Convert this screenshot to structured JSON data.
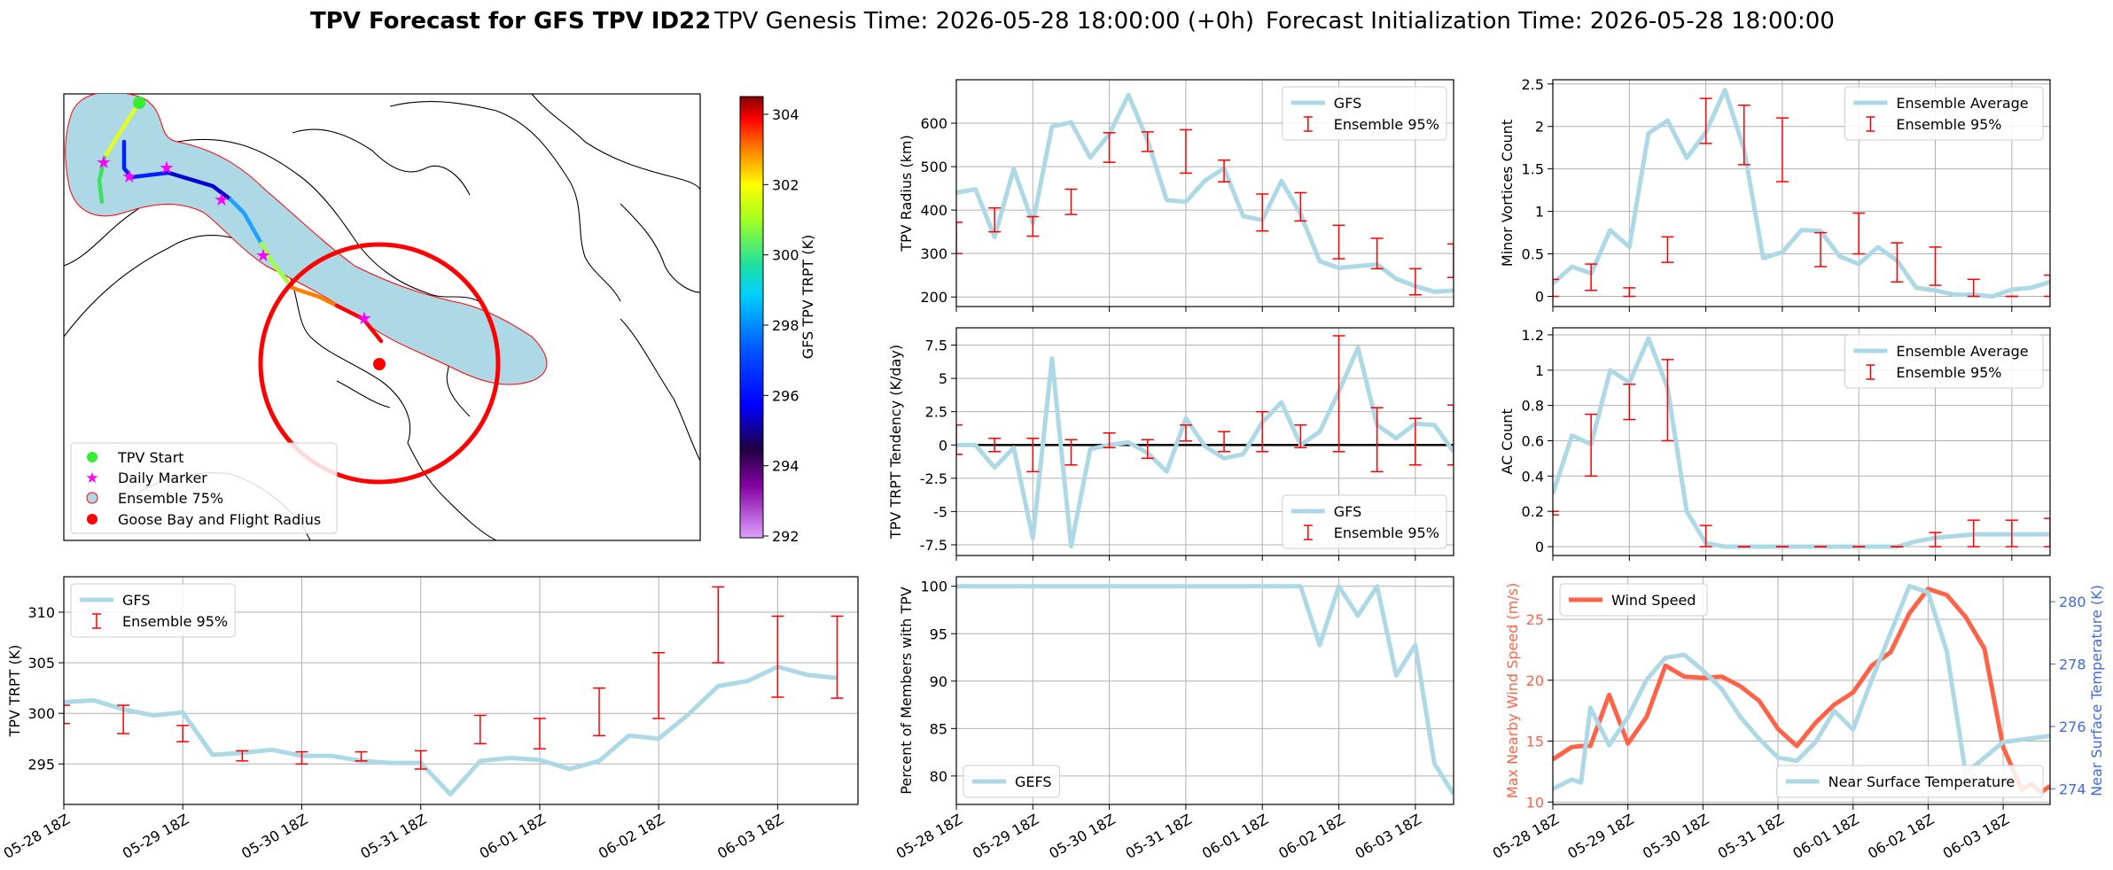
{
  "title": {
    "bold": "TPV Forecast for GFS TPV ID22",
    "genesis": "TPV Genesis Time: 2026-05-28 18:00:00 (+0h)",
    "init": "Forecast Initialization Time: 2026-05-28 18:00:00"
  },
  "colors": {
    "gfs": "#add8e6",
    "ens": "#ff0000",
    "wind": "#ff6347",
    "temp_axis": "#4169e1"
  },
  "map": {
    "colorbar_label": "GFS TPV TRPT (K)",
    "colorbar_ticks": [
      "304",
      "302",
      "300",
      "298",
      "296",
      "294",
      "292"
    ],
    "legend": [
      "TPV Start",
      "Daily Marker",
      "Ensemble 75%",
      "Goose Bay and Flight Radius"
    ]
  },
  "date_ticks": [
    "05-28 18Z",
    "05-29 18Z",
    "05-30 18Z",
    "05-31 18Z",
    "06-01 18Z",
    "06-02 18Z",
    "06-03 18Z"
  ],
  "chart_data": [
    {
      "id": "trpt",
      "type": "line",
      "ylabel": "TPV TRPT (K)",
      "ylim": [
        291,
        313.5
      ],
      "yticks": [
        295,
        300,
        305,
        310
      ],
      "legend": [
        "GFS",
        "Ensemble 95%"
      ],
      "legend_loc": "upper-left",
      "gfs": [
        301.1,
        301.3,
        300.4,
        299.8,
        300.1,
        295.9,
        296.1,
        296.4,
        295.8,
        295.8,
        295.3,
        295.1,
        295.1,
        292.0,
        295.3,
        295.6,
        295.4,
        294.5,
        295.3,
        297.8,
        297.5,
        299.9,
        302.7,
        303.2,
        304.6,
        303.8,
        303.5
      ],
      "ens_x": [
        0,
        2,
        4,
        6,
        8,
        10,
        12,
        14,
        16,
        18,
        20,
        22,
        24,
        26
      ],
      "ens_low": [
        299.0,
        298.0,
        297.2,
        295.3,
        295.0,
        295.3,
        294.5,
        297.0,
        296.5,
        297.8,
        299.5,
        305.0,
        301.6,
        301.5
      ],
      "ens_high": [
        300.8,
        300.8,
        298.8,
        296.3,
        296.2,
        296.2,
        296.3,
        299.8,
        299.5,
        302.5,
        306.0,
        312.5,
        309.6,
        309.6
      ]
    },
    {
      "id": "radius",
      "type": "line",
      "ylabel": "TPV Radius (km)",
      "ylim": [
        178,
        700
      ],
      "yticks": [
        200,
        300,
        400,
        500,
        600
      ],
      "legend": [
        "GFS",
        "Ensemble 95%"
      ],
      "legend_loc": "upper-right",
      "gfs": [
        440,
        448,
        338,
        495,
        370,
        592,
        602,
        521,
        575,
        665,
        560,
        423,
        419,
        468,
        496,
        386,
        377,
        467,
        391,
        282,
        267,
        271,
        275,
        242,
        225,
        212,
        215
      ],
      "ens_x": [
        0,
        2,
        4,
        6,
        8,
        10,
        12,
        14,
        16,
        18,
        20,
        22,
        24,
        26
      ],
      "ens_low": [
        300,
        350,
        340,
        390,
        510,
        535,
        485,
        465,
        352,
        375,
        288,
        265,
        205,
        245
      ],
      "ens_high": [
        372,
        405,
        385,
        448,
        578,
        580,
        585,
        515,
        437,
        440,
        365,
        335,
        265,
        322
      ]
    },
    {
      "id": "minor",
      "type": "line",
      "ylabel": "Minor Vortices Count",
      "ylim": [
        -0.12,
        2.55
      ],
      "yticks": [
        0.0,
        0.5,
        1.0,
        1.5,
        2.0,
        2.5
      ],
      "legend": [
        "Ensemble Average",
        "Ensemble 95%"
      ],
      "legend_loc": "upper-right",
      "gfs": [
        0.15,
        0.35,
        0.27,
        0.78,
        0.58,
        1.92,
        2.07,
        1.63,
        1.93,
        2.43,
        1.73,
        0.45,
        0.52,
        0.78,
        0.77,
        0.47,
        0.38,
        0.58,
        0.42,
        0.1,
        0.07,
        0.02,
        0.02,
        0.0,
        0.08,
        0.1,
        0.17
      ],
      "ens_x": [
        0,
        2,
        4,
        6,
        8,
        10,
        12,
        14,
        16,
        18,
        20,
        22,
        24,
        26
      ],
      "ens_low": [
        0.0,
        0.07,
        0.0,
        0.4,
        1.8,
        1.55,
        1.35,
        0.35,
        0.5,
        0.17,
        0.13,
        0.0,
        0.0,
        0.0
      ],
      "ens_high": [
        0.2,
        0.38,
        0.1,
        0.7,
        2.33,
        2.25,
        2.1,
        0.75,
        0.98,
        0.63,
        0.58,
        0.2,
        0.0,
        0.25
      ]
    },
    {
      "id": "tendency",
      "type": "line",
      "ylabel": "TPV TRPT Tendency (K/day)",
      "ylim": [
        -8.3,
        8.8
      ],
      "yticks": [
        -7.5,
        -5.0,
        -2.5,
        0.0,
        2.5,
        5.0,
        7.5
      ],
      "legend": [
        "GFS",
        "Ensemble 95%"
      ],
      "legend_loc": "lower-right",
      "gfs": [
        0.0,
        0.0,
        -1.7,
        -0.2,
        -7.0,
        6.5,
        -7.6,
        -0.3,
        0.0,
        0.2,
        -0.6,
        -2.0,
        2.0,
        -0.1,
        -1.0,
        -0.7,
        1.7,
        3.2,
        0.0,
        1.0,
        4.0,
        7.3,
        1.5,
        0.5,
        1.6,
        1.5,
        -0.5
      ],
      "ens_x": [
        0,
        2,
        4,
        6,
        8,
        10,
        12,
        14,
        16,
        18,
        20,
        22,
        24,
        26
      ],
      "ens_low": [
        -0.7,
        -0.5,
        -2.0,
        -1.5,
        -0.2,
        -1.0,
        0.3,
        -0.5,
        -0.5,
        -0.2,
        -0.5,
        -2.0,
        -1.5,
        -1.5
      ],
      "ens_high": [
        1.5,
        0.5,
        0.5,
        0.4,
        0.9,
        0.4,
        1.5,
        1.0,
        2.5,
        1.5,
        8.2,
        2.8,
        2.0,
        3.0
      ]
    },
    {
      "id": "ac",
      "type": "line",
      "ylabel": "AC Count",
      "ylim": [
        -0.05,
        1.24
      ],
      "yticks": [
        0.0,
        0.2,
        0.4,
        0.6,
        0.8,
        1.0,
        1.2
      ],
      "legend": [
        "Ensemble Average",
        "Ensemble 95%"
      ],
      "legend_loc": "upper-right",
      "gfs": [
        0.3,
        0.63,
        0.58,
        1.0,
        0.93,
        1.18,
        0.9,
        0.2,
        0.02,
        0.0,
        0.0,
        0.0,
        0.0,
        0.0,
        0.0,
        0.0,
        0.0,
        0.0,
        0.0,
        0.03,
        0.05,
        0.06,
        0.07,
        0.07,
        0.07,
        0.07,
        0.07
      ],
      "ens_x": [
        0,
        2,
        4,
        6,
        8,
        10,
        12,
        14,
        16,
        18,
        20,
        22,
        24,
        26
      ],
      "ens_low": [
        0.18,
        0.4,
        0.72,
        0.6,
        0.0,
        0.0,
        0.0,
        0.0,
        0.0,
        0.0,
        0.0,
        0.0,
        0.0,
        0.0
      ],
      "ens_high": [
        0.2,
        0.75,
        0.92,
        1.06,
        0.12,
        0.0,
        0.0,
        0.0,
        0.0,
        0.0,
        0.08,
        0.15,
        0.15,
        0.16
      ]
    },
    {
      "id": "percent",
      "type": "line",
      "ylabel": "Percent of Members with TPV",
      "ylim": [
        77,
        101
      ],
      "yticks": [
        80,
        85,
        90,
        95,
        100
      ],
      "legend": [
        "GEFS"
      ],
      "legend_loc": "lower-left",
      "gfs": [
        100,
        100,
        100,
        100,
        100,
        100,
        100,
        100,
        100,
        100,
        100,
        100,
        100,
        100,
        100,
        100,
        100,
        100,
        100,
        93.8,
        100,
        96.9,
        100,
        90.6,
        93.8,
        81.3,
        78.1
      ]
    },
    {
      "id": "wind",
      "type": "line",
      "ylabel": "Max Nearby Wind Speed (m/s)",
      "ylabel_right": "Near Surface Temperature (K)",
      "ylim": [
        9.8,
        28.5
      ],
      "yticks": [
        10,
        15,
        20,
        25
      ],
      "ylim_right": [
        273.5,
        280.8
      ],
      "yticks_right": [
        274,
        276,
        278,
        280
      ],
      "legend": [
        "Wind Speed"
      ],
      "legend_right": [
        "Near Surface Temperature"
      ],
      "x": [
        0,
        1,
        2,
        3,
        4,
        5,
        6,
        7,
        8,
        9,
        10,
        11,
        12,
        13,
        14,
        15,
        16,
        17,
        18,
        19,
        20,
        21,
        22,
        23,
        24,
        25,
        26,
        27,
        28,
        29,
        30,
        31,
        32,
        33,
        34,
        35,
        36,
        37,
        38,
        39,
        40,
        41,
        42,
        43,
        44,
        45,
        46,
        47,
        48,
        49,
        50,
        51,
        52,
        53
      ],
      "wind": [
        13.5,
        14.5,
        14.6,
        14.6,
        18.8,
        14.8,
        17.0,
        21.2,
        20.3,
        20.2,
        20.3,
        19.5,
        18.3,
        16.0,
        14.6,
        16.5,
        18.0,
        19.0,
        21.2,
        22.3,
        25.5,
        27.5,
        27.0,
        25.2,
        22.6,
        14.5,
        11.0,
        11.5,
        10.8,
        11.3
      ],
      "wind_x": [
        0,
        2,
        3,
        4,
        6,
        8,
        10,
        12,
        14,
        16,
        18,
        20,
        22,
        24,
        26,
        28,
        30,
        32,
        34,
        36,
        38,
        40,
        42,
        44,
        46,
        48,
        50,
        51,
        52,
        53
      ],
      "temp": [
        274.0,
        274.3,
        274.2,
        276.6,
        275.4,
        276.3,
        277.5,
        278.2,
        278.3,
        277.8,
        277.2,
        276.3,
        275.6,
        275.0,
        274.9,
        275.5,
        276.5,
        275.9,
        277.5,
        279.0,
        280.5,
        280.3,
        278.4,
        274.5,
        275.0,
        275.5,
        275.7
      ],
      "temp_x": [
        0,
        2,
        3,
        4,
        6,
        8,
        10,
        12,
        14,
        16,
        18,
        20,
        22,
        24,
        26,
        28,
        30,
        32,
        34,
        36,
        38,
        40,
        42,
        44,
        46,
        48,
        53
      ]
    }
  ]
}
